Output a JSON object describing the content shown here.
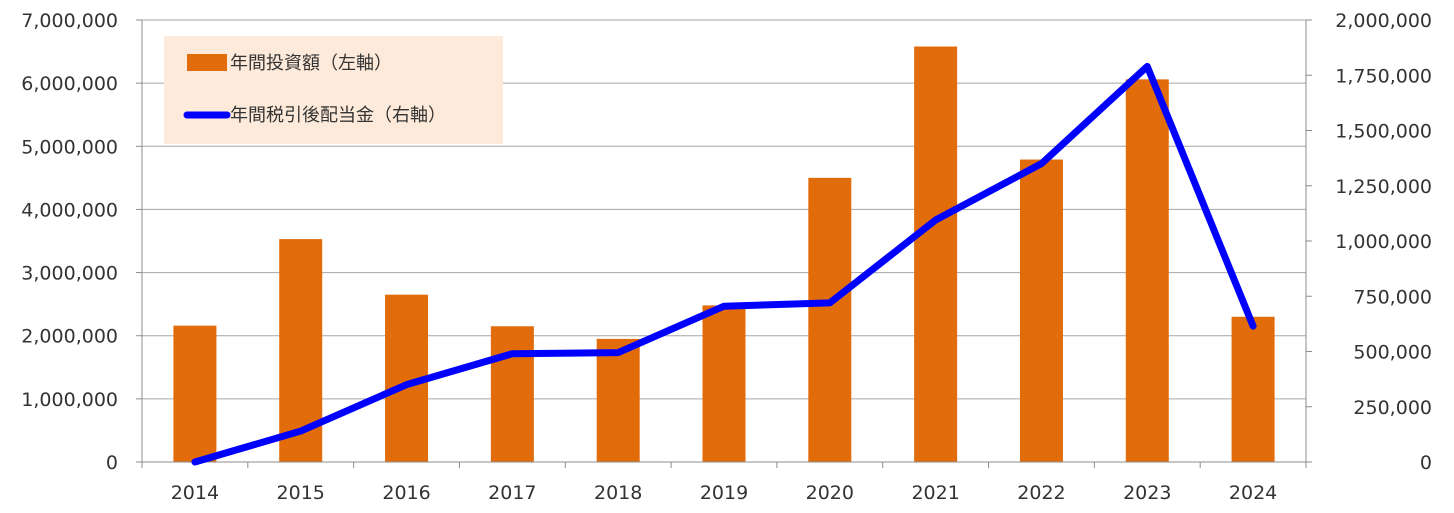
{
  "chart_data": {
    "type": "bar",
    "categories": [
      "2014",
      "2015",
      "2016",
      "2017",
      "2018",
      "2019",
      "2020",
      "2021",
      "2022",
      "2023",
      "2024"
    ],
    "series": [
      {
        "name": "年間投資額（左軸）",
        "type": "bar",
        "axis": "left",
        "color": "#E36C0A",
        "values": [
          2160000,
          3530000,
          2650000,
          2150000,
          1950000,
          2480000,
          4500000,
          6580000,
          4790000,
          6060000,
          2300000
        ]
      },
      {
        "name": "年間税引後配当金（右軸）",
        "type": "line",
        "axis": "right",
        "color": "#0000FF",
        "values": [
          0,
          140000,
          350000,
          490000,
          495000,
          705000,
          720000,
          1095000,
          1350000,
          1790000,
          615000
        ]
      }
    ],
    "y_left": {
      "ylim": [
        0,
        7000000
      ],
      "ticks": [
        "0",
        "1,000,000",
        "2,000,000",
        "3,000,000",
        "4,000,000",
        "5,000,000",
        "6,000,000",
        "7,000,000"
      ]
    },
    "y_right": {
      "ylim": [
        0,
        2000000
      ],
      "ticks": [
        "0",
        "250,000",
        "500,000",
        "750,000",
        "1,000,000",
        "1,250,000",
        "1,500,000",
        "1,750,000",
        "2,000,000"
      ]
    },
    "grid": true,
    "legend_position": "top-left",
    "legend_background": "#FDEADA",
    "title": "",
    "xlabel": "",
    "ylabel": ""
  }
}
